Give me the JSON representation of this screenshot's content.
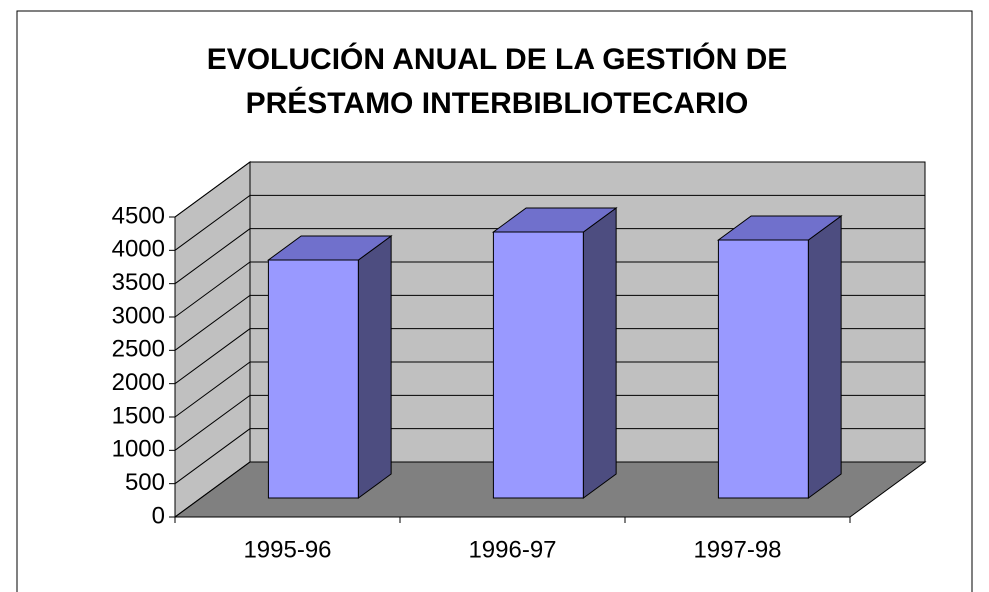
{
  "chart_data": {
    "type": "bar",
    "title": "EVOLUCIÓN ANUAL DE LA GESTIÓN DE PRÉSTAMO INTERBIBLIOTECARIO",
    "categories": [
      "1995-96",
      "1996-97",
      "1997-98"
    ],
    "values": [
      3570,
      3990,
      3870
    ],
    "color": "#9999ff",
    "ylim": [
      0,
      4500
    ],
    "yticks": [
      0,
      500,
      1000,
      1500,
      2000,
      2500,
      3000,
      3500,
      4000,
      4500
    ],
    "grid": true
  }
}
